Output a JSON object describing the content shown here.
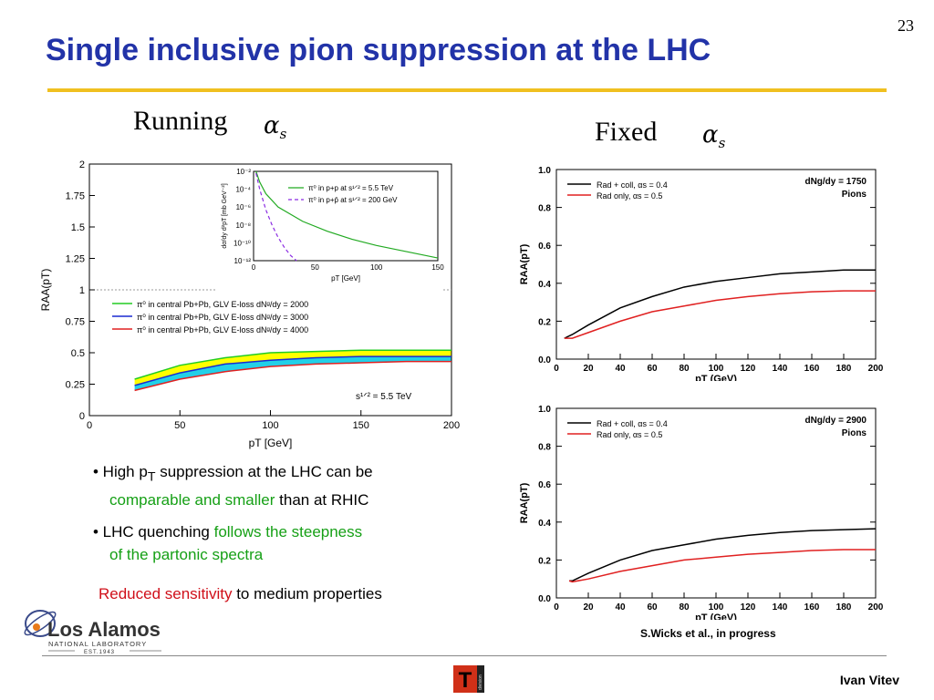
{
  "page_number": "23",
  "title": "Single inclusive pion suppression at the LHC",
  "labels": {
    "running": "Running",
    "fixed": "Fixed",
    "alpha": "α",
    "alpha_sub": "s"
  },
  "chart_data": [
    {
      "type": "area",
      "name": "left-main",
      "xlabel": "pT [GeV]",
      "ylabel": "RAA(pT)",
      "xlim": [
        0,
        200
      ],
      "ylim": [
        0,
        2
      ],
      "xticks": [
        "0",
        "50",
        "100",
        "150",
        "200"
      ],
      "yticks": [
        "0",
        "0.25",
        "0.5",
        "0.75",
        "1",
        "1.25",
        "1.5",
        "1.75",
        "2"
      ],
      "legend": [
        "π⁰ in central Pb+Pb, GLV E-loss dNᵍ/dy = 2000",
        "π⁰ in central Pb+Pb, GLV E-loss dNᵍ/dy = 3000",
        "π⁰ in central Pb+Pb, GLV E-loss dNᵍ/dy = 4000"
      ],
      "annotation": "s¹ᐟ² = 5.5 TeV",
      "series": [
        {
          "name": "dNg/dy = 2000",
          "color": "#22cc22",
          "x": [
            25,
            50,
            75,
            100,
            125,
            150,
            175,
            200
          ],
          "y": [
            0.29,
            0.4,
            0.46,
            0.5,
            0.51,
            0.52,
            0.52,
            0.52
          ]
        },
        {
          "name": "dNg/dy = 3000",
          "color": "#1a2ad0",
          "x": [
            25,
            50,
            75,
            100,
            125,
            150,
            175,
            200
          ],
          "y": [
            0.24,
            0.34,
            0.41,
            0.44,
            0.46,
            0.47,
            0.47,
            0.47
          ]
        },
        {
          "name": "dNg/dy = 4000",
          "color": "#e02020",
          "x": [
            25,
            50,
            75,
            100,
            125,
            150,
            175,
            200
          ],
          "y": [
            0.2,
            0.29,
            0.35,
            0.39,
            0.41,
            0.42,
            0.43,
            0.43
          ]
        }
      ],
      "band_colors": {
        "upper": "#ffff00",
        "lower": "#22d0e8"
      }
    },
    {
      "type": "line",
      "name": "left-inset",
      "xlabel": "pT [GeV]",
      "ylabel": "dσ/dy d²pT [mb GeV⁻²]",
      "xlim": [
        0,
        150
      ],
      "ylog": true,
      "yticks": [
        "10⁻²",
        "10⁻⁴",
        "10⁻⁶",
        "10⁻⁸",
        "10⁻¹⁰",
        "10⁻¹²"
      ],
      "xticks": [
        "0",
        "50",
        "100",
        "150"
      ],
      "legend": [
        "π⁰ in p+p at s¹ᐟ² = 5.5 TeV",
        "π⁰ in p+p̄ at s¹ᐟ² = 200 GeV"
      ],
      "series": [
        {
          "name": "π⁰ in p+p at s¹ᐟ² = 5.5 TeV",
          "color": "#22aa22",
          "style": "solid",
          "x": [
            2,
            5,
            10,
            20,
            40,
            60,
            80,
            100,
            125,
            150
          ],
          "y": [
            -2,
            -3.2,
            -4.5,
            -6.0,
            -7.6,
            -8.7,
            -9.6,
            -10.3,
            -11.0,
            -11.7
          ]
        },
        {
          "name": "π⁰ in p+p̄ at s¹ᐟ² = 200 GeV",
          "color": "#8a2be2",
          "style": "dashed",
          "x": [
            2,
            5,
            10,
            15,
            20,
            25,
            30,
            35
          ],
          "y": [
            -2.2,
            -4.0,
            -6.3,
            -8.0,
            -9.4,
            -10.5,
            -11.4,
            -12.0
          ]
        }
      ]
    },
    {
      "type": "line",
      "name": "right-top",
      "xlabel": "pT (GeV)",
      "ylabel": "RAA(pT)",
      "xlim": [
        0,
        200
      ],
      "ylim": [
        0,
        1
      ],
      "xticks": [
        "0",
        "20",
        "40",
        "60",
        "80",
        "100",
        "120",
        "140",
        "160",
        "180",
        "200"
      ],
      "yticks": [
        "0.0",
        "0.2",
        "0.4",
        "0.6",
        "0.8",
        "1.0"
      ],
      "legend": [
        "Rad + coll, αs = 0.4",
        "Rad only, αs = 0.5"
      ],
      "annotation_1": "dNg/dy = 1750",
      "annotation_2": "Pions",
      "series": [
        {
          "name": "Rad + coll, αs = 0.4",
          "color": "#000000",
          "x": [
            5,
            10,
            20,
            40,
            60,
            80,
            100,
            120,
            140,
            160,
            180,
            200
          ],
          "y": [
            0.11,
            0.13,
            0.18,
            0.27,
            0.33,
            0.38,
            0.41,
            0.43,
            0.45,
            0.46,
            0.47,
            0.47
          ]
        },
        {
          "name": "Rad only, αs = 0.5",
          "color": "#e02020",
          "x": [
            5,
            10,
            20,
            40,
            60,
            80,
            100,
            120,
            140,
            160,
            180,
            200
          ],
          "y": [
            0.11,
            0.11,
            0.14,
            0.2,
            0.25,
            0.28,
            0.31,
            0.33,
            0.345,
            0.355,
            0.36,
            0.36
          ]
        }
      ]
    },
    {
      "type": "line",
      "name": "right-bottom",
      "xlabel": "pT (GeV)",
      "ylabel": "RAA(pT)",
      "xlim": [
        0,
        200
      ],
      "ylim": [
        0,
        1
      ],
      "xticks": [
        "0",
        "20",
        "40",
        "60",
        "80",
        "100",
        "120",
        "140",
        "160",
        "180",
        "200"
      ],
      "yticks": [
        "0.0",
        "0.2",
        "0.4",
        "0.6",
        "0.8",
        "1.0"
      ],
      "legend": [
        "Rad + coll, αs = 0.4",
        "Rad only, αs = 0.5"
      ],
      "annotation_1": "dNg/dy = 2900",
      "annotation_2": "Pions",
      "series": [
        {
          "name": "Rad + coll, αs = 0.4",
          "color": "#000000",
          "x": [
            8,
            10,
            20,
            40,
            60,
            80,
            100,
            120,
            140,
            160,
            180,
            200
          ],
          "y": [
            0.09,
            0.09,
            0.13,
            0.2,
            0.25,
            0.28,
            0.31,
            0.33,
            0.345,
            0.355,
            0.36,
            0.365
          ]
        },
        {
          "name": "Rad only, αs = 0.5",
          "color": "#e02020",
          "x": [
            8,
            10,
            20,
            40,
            60,
            80,
            100,
            120,
            140,
            160,
            180,
            200
          ],
          "y": [
            0.09,
            0.085,
            0.1,
            0.14,
            0.17,
            0.2,
            0.215,
            0.23,
            0.24,
            0.25,
            0.255,
            0.255
          ]
        }
      ]
    }
  ],
  "bullets": {
    "b1_a": "• High p",
    "b1_sub": "T",
    "b1_b": "  suppression at the LHC can be",
    "b1_green": "comparable and smaller",
    "b1_c": " than at RHIC",
    "b2_a": "• LHC quenching ",
    "b2_green": "follows the steepness",
    "b2_green2": "of the partonic spectra",
    "b3_red": "Reduced sensitivity",
    "b3_b": " to medium properties"
  },
  "credit": "S.Wicks et al., in progress",
  "author": "Ivan Vitev",
  "logo": {
    "name": "Los Alamos",
    "sub": "NATIONAL LABORATORY",
    "est": "EST.1943",
    "t_letter": "T",
    "t_word": "division"
  },
  "colors": {
    "title": "#2233a8",
    "rule": "#f0c020",
    "green": "#16a016",
    "red": "#d0101a"
  }
}
